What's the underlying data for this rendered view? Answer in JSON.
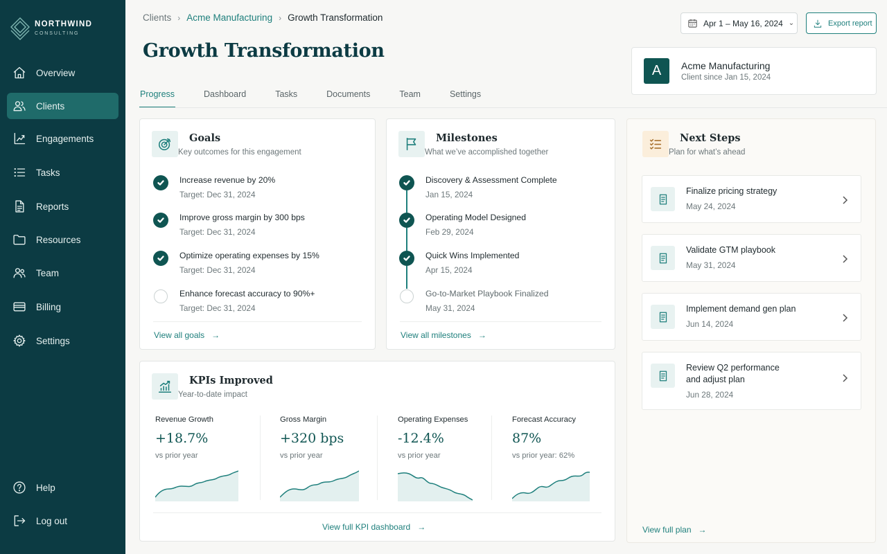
{
  "brand": {
    "name": "NORTHWIND",
    "sub": "CONSULTING"
  },
  "nav": {
    "items": [
      {
        "label": "Overview",
        "icon": "home-icon"
      },
      {
        "label": "Clients",
        "icon": "users-icon",
        "active": true
      },
      {
        "label": "Engagements",
        "icon": "chart-icon"
      },
      {
        "label": "Tasks",
        "icon": "list-icon"
      },
      {
        "label": "Reports",
        "icon": "document-icon"
      },
      {
        "label": "Resources",
        "icon": "folder-icon"
      },
      {
        "label": "Team",
        "icon": "team-icon"
      },
      {
        "label": "Billing",
        "icon": "card-icon"
      },
      {
        "label": "Settings",
        "icon": "gear-icon"
      }
    ],
    "help": "Help",
    "logout": "Log out"
  },
  "breadcrumb": [
    "Clients",
    "Acme Manufacturing",
    "Growth Transformation"
  ],
  "page_title": "Growth Transformation",
  "date_range": "Apr 1 – May 16, 2024",
  "export_label": "Export report",
  "client": {
    "initial": "A",
    "name": "Acme Manufacturing",
    "since": "Client since Jan 15, 2024"
  },
  "tabs": [
    "Progress",
    "Dashboard",
    "Tasks",
    "Documents",
    "Team",
    "Settings"
  ],
  "active_tab": "Progress",
  "goals": {
    "title": "Goals",
    "subtitle": "Key outcomes for this engagement",
    "items": [
      {
        "title": "Increase revenue by 20%",
        "target": "Target: Dec 31, 2024",
        "done": true
      },
      {
        "title": "Improve gross margin by 300 bps",
        "target": "Target: Dec 31, 2024",
        "done": true
      },
      {
        "title": "Optimize operating expenses by 15%",
        "target": "Target: Dec 31, 2024",
        "done": true
      },
      {
        "title": "Enhance forecast accuracy to 90%+",
        "target": "Target: Dec 31, 2024",
        "done": false
      }
    ],
    "link": "View all goals"
  },
  "milestones": {
    "title": "Milestones",
    "subtitle": "What we’ve accomplished together",
    "items": [
      {
        "title": "Discovery & Assessment Complete",
        "date": "Jan 15, 2024",
        "done": true
      },
      {
        "title": "Operating Model Designed",
        "date": "Feb 29, 2024",
        "done": true
      },
      {
        "title": "Quick Wins Implemented",
        "date": "Apr 15, 2024",
        "done": true
      },
      {
        "title": "Go-to-Market Playbook Finalized",
        "date": "May 31, 2024",
        "done": false
      }
    ],
    "link": "View all milestones"
  },
  "kpis": {
    "title": "KPIs Improved",
    "subtitle": "Year-to-date impact",
    "items": [
      {
        "label": "Revenue Growth",
        "value": "+18.7%",
        "note": "vs prior year"
      },
      {
        "label": "Gross Margin",
        "value": "+320 bps",
        "note": "vs prior year"
      },
      {
        "label": "Operating Expenses",
        "value": "-12.4%",
        "note": "vs prior year"
      },
      {
        "label": "Forecast Accuracy",
        "value": "87%",
        "note": "vs prior year: 62%"
      }
    ],
    "link": "View full KPI dashboard"
  },
  "next_steps": {
    "title": "Next Steps",
    "subtitle": "Plan for what’s ahead",
    "items": [
      {
        "title": "Finalize pricing strategy",
        "date": "May 24, 2024"
      },
      {
        "title": "Validate GTM playbook",
        "date": "May 31, 2024"
      },
      {
        "title": "Implement demand gen plan",
        "date": "Jun 14, 2024"
      },
      {
        "title": "Review Q2 performance and adjust plan",
        "title_l1": "Review Q2 performance",
        "title_l2": "and adjust plan",
        "date": "Jun 28, 2024"
      }
    ],
    "link": "View full plan"
  },
  "colors": {
    "sidebar": "#0c3b43",
    "accent": "#1e7f7c",
    "check": "#0f5552"
  }
}
